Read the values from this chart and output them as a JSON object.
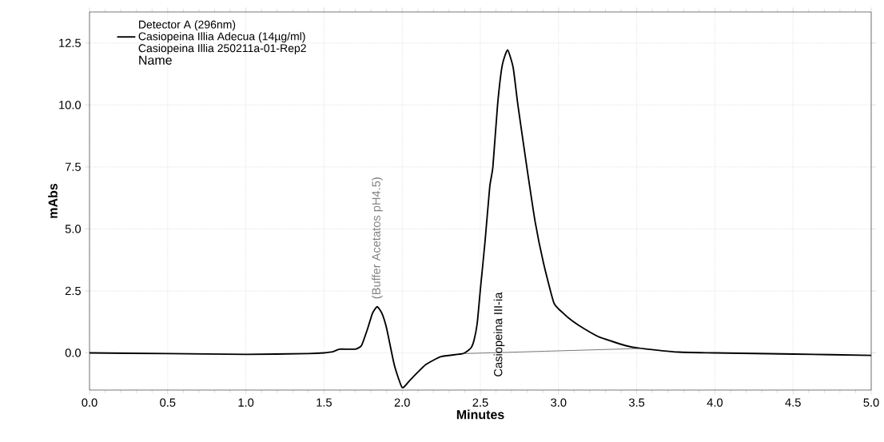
{
  "chart_data": {
    "type": "line",
    "xlabel": "**Minutes**",
    "ylabel": "**mAbs**",
    "legend_title": "Detector A (296nm)",
    "legend": "top left",
    "grid": true,
    "marker": "none",
    "line_style": "solid",
    "xlim": [
      0,
      5
    ],
    "ylim": [
      -1.5,
      13.75
    ],
    "xticks": [
      {
        "value": 0,
        "label": "0.0"
      },
      {
        "value": 0.5,
        "label": "0.5"
      },
      {
        "value": 1,
        "label": "1.0"
      },
      {
        "value": 1.5,
        "label": "1.5"
      },
      {
        "value": 2,
        "label": "2.0"
      },
      {
        "value": 2.5,
        "label": "2.5"
      },
      {
        "value": 3,
        "label": "3.0"
      },
      {
        "value": 3.5,
        "label": "3.5"
      },
      {
        "value": 4,
        "label": "4.0"
      },
      {
        "value": 4.5,
        "label": "4.5"
      },
      {
        "value": 5,
        "label": "5.0"
      }
    ],
    "yticks": [
      {
        "value": 0,
        "label": "0.0"
      },
      {
        "value": 2.5,
        "label": "2.5"
      },
      {
        "value": 5,
        "label": "5.0"
      },
      {
        "value": 7.5,
        "label": "7.5"
      },
      {
        "value": 10,
        "label": "10.0"
      },
      {
        "value": 12.5,
        "label": "12.5"
      }
    ],
    "series": [
      {
        "name": "Casiopeina Illia Adecua (14µg/ml)",
        "color": "#000000",
        "x": [
          0,
          0.5,
          1.0,
          1.4,
          1.5,
          1.56,
          1.6,
          1.7,
          1.74,
          1.78,
          1.81,
          1.84,
          1.87,
          1.9,
          1.95,
          2.0,
          2.05,
          2.15,
          2.25,
          2.39,
          2.44,
          2.46,
          2.48,
          2.5,
          2.53,
          2.56,
          2.58,
          2.61,
          2.64,
          2.674,
          2.71,
          2.74,
          2.797,
          2.85,
          2.904,
          2.97,
          3.03,
          3.09,
          3.17,
          3.26,
          3.43,
          3.52,
          3.77,
          4.0,
          4.5,
          5.0
        ],
        "values": [
          0.0,
          -0.03,
          -0.06,
          -0.03,
          0.0,
          0.05,
          0.15,
          0.15,
          0.3,
          1.0,
          1.6,
          1.86,
          1.6,
          1.0,
          -0.5,
          -1.4,
          -1.1,
          -0.48,
          -0.15,
          -0.03,
          0.2,
          0.52,
          1.2,
          2.56,
          4.5,
          6.7,
          7.5,
          10.0,
          11.6,
          12.22,
          11.5,
          10.0,
          7.5,
          5.3,
          3.62,
          2.02,
          1.6,
          1.28,
          0.95,
          0.64,
          0.29,
          0.19,
          0.03,
          0.0,
          -0.05,
          -0.1
        ]
      },
      {
        "color": "#555555",
        "x": [
          2.39,
          3.54
        ],
        "values": [
          -0.03,
          0.18
        ]
      }
    ],
    "annotations": [
      "Casiopeina Illia 250211a-01-Rep2",
      "Name",
      {
        "text": "(Buffer Acetatos pH4.5)",
        "x": 1.84,
        "y": 1.86
      },
      {
        "text": "Casiopeina III-ia",
        "x": 2.62,
        "y": 0.01
      }
    ]
  }
}
